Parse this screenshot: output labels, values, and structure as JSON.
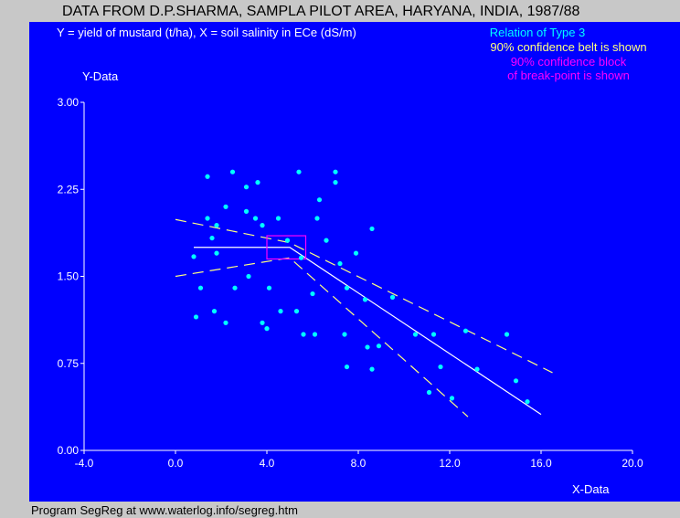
{
  "window": {
    "title": "DATA FROM D.P.SHARMA, SAMPLA PILOT AREA, HARYANA, INDIA, 1987/88",
    "footer": "Program SegReg at www.waterlog.info/segreg.htm"
  },
  "colors": {
    "background": "#0000ff",
    "frame": "#c8c8c8",
    "points": "#00ffff",
    "fit_line": "#ffffff",
    "confidence_belt": "#ffff80",
    "breakpoint_block": "#ff00ff",
    "axis_text": "#ffffff",
    "relation_text": "#00ffff",
    "belt_text": "#ffff80",
    "block_text": "#ff00ff"
  },
  "chart_data": {
    "type": "scatter",
    "subtitle": "Y = yield of mustard (t/ha), X = soil salinity in ECe (dS/m)",
    "xlabel": "X-Data",
    "ylabel": "Y-Data",
    "xlim": [
      -4,
      20
    ],
    "ylim": [
      0,
      3
    ],
    "x_ticks": [
      "-4.0",
      "0.0",
      "4.0",
      "8.0",
      "12.0",
      "16.0",
      "20.0"
    ],
    "x_tick_values": [
      -4,
      0,
      4,
      8,
      12,
      16,
      20
    ],
    "y_ticks": [
      "0.00",
      "0.75",
      "1.50",
      "2.25",
      "3.00"
    ],
    "y_tick_values": [
      0,
      0.75,
      1.5,
      2.25,
      3.0
    ],
    "grid": false,
    "legend": [
      "Relation of Type 3",
      "90% confidence belt is shown",
      "90% confidence block",
      "of break-point is shown"
    ],
    "points": [
      [
        1.4,
        2.36
      ],
      [
        2.5,
        2.4
      ],
      [
        3.1,
        2.27
      ],
      [
        3.6,
        2.31
      ],
      [
        5.4,
        2.4
      ],
      [
        7.0,
        2.4
      ],
      [
        7.0,
        2.31
      ],
      [
        6.3,
        2.16
      ],
      [
        2.2,
        2.1
      ],
      [
        3.1,
        2.06
      ],
      [
        1.4,
        2.0
      ],
      [
        3.5,
        2.0
      ],
      [
        4.5,
        2.0
      ],
      [
        6.2,
        2.0
      ],
      [
        1.8,
        1.94
      ],
      [
        3.8,
        1.94
      ],
      [
        8.6,
        1.91
      ],
      [
        1.6,
        1.83
      ],
      [
        4.9,
        1.81
      ],
      [
        6.6,
        1.81
      ],
      [
        1.8,
        1.7
      ],
      [
        7.9,
        1.7
      ],
      [
        0.8,
        1.67
      ],
      [
        5.5,
        1.66
      ],
      [
        7.2,
        1.61
      ],
      [
        3.2,
        1.5
      ],
      [
        1.1,
        1.4
      ],
      [
        2.6,
        1.4
      ],
      [
        4.1,
        1.4
      ],
      [
        7.5,
        1.4
      ],
      [
        6.0,
        1.35
      ],
      [
        8.3,
        1.3
      ],
      [
        9.5,
        1.32
      ],
      [
        4.6,
        1.2
      ],
      [
        1.7,
        1.2
      ],
      [
        5.3,
        1.2
      ],
      [
        0.9,
        1.15
      ],
      [
        2.2,
        1.1
      ],
      [
        3.8,
        1.1
      ],
      [
        4.0,
        1.05
      ],
      [
        5.6,
        1.0
      ],
      [
        6.1,
        1.0
      ],
      [
        7.4,
        1.0
      ],
      [
        10.5,
        1.0
      ],
      [
        11.3,
        1.0
      ],
      [
        12.7,
        1.03
      ],
      [
        14.5,
        1.0
      ],
      [
        8.4,
        0.89
      ],
      [
        8.9,
        0.9
      ],
      [
        7.5,
        0.72
      ],
      [
        8.6,
        0.7
      ],
      [
        11.6,
        0.72
      ],
      [
        13.2,
        0.7
      ],
      [
        14.9,
        0.6
      ],
      [
        11.1,
        0.5
      ],
      [
        12.1,
        0.45
      ],
      [
        15.4,
        0.42
      ]
    ],
    "fit_line": [
      [
        0.8,
        1.75
      ],
      [
        5.0,
        1.75
      ],
      [
        16.0,
        0.31
      ]
    ],
    "confidence_upper": [
      [
        0.0,
        1.99
      ],
      [
        5.0,
        1.79
      ],
      [
        16.5,
        0.67
      ]
    ],
    "confidence_lower": [
      [
        0.0,
        1.5
      ],
      [
        5.0,
        1.66
      ],
      [
        12.8,
        0.29
      ]
    ],
    "breakpoint_block": {
      "x": [
        4.0,
        5.7
      ],
      "y": [
        1.65,
        1.85
      ]
    }
  }
}
